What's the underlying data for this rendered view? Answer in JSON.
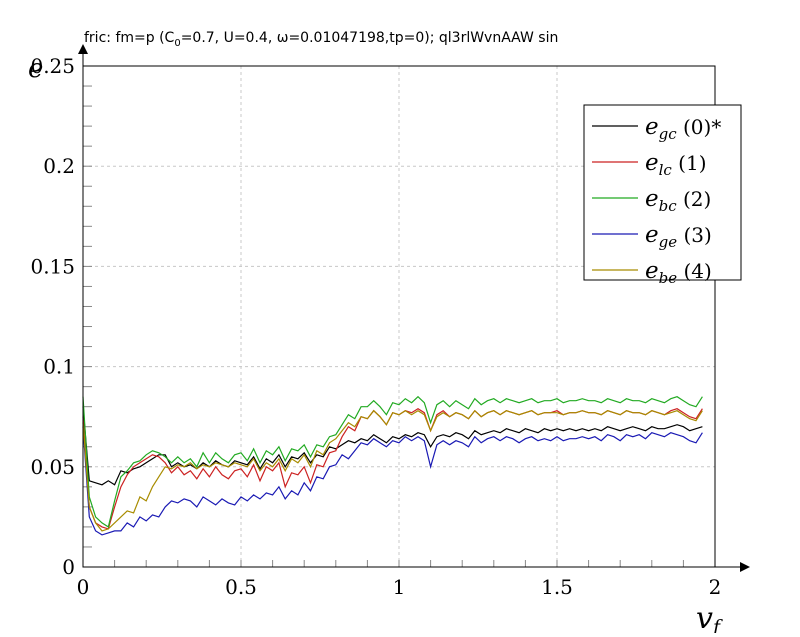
{
  "chart_data": {
    "type": "line",
    "title": "fric: fm=p (C",
    "title_sub": "0",
    "title_rest": "=0.7, U=0.4, ω=0.01047198,tp=0); ql3rlWvnAAW sin",
    "xlabel": "v",
    "xlabel_sub": "f",
    "ylabel": "e",
    "xlim": [
      0,
      2
    ],
    "ylim": [
      0,
      0.25
    ],
    "x_ticks": [
      0,
      0.5,
      1,
      1.5,
      2
    ],
    "x_tick_labels": [
      "0",
      "0.5",
      "1",
      "1.5",
      "2"
    ],
    "y_ticks": [
      0,
      0.05,
      0.1,
      0.15,
      0.2,
      0.25
    ],
    "y_tick_labels": [
      "0",
      "0.05",
      "0.1",
      "0.15",
      "0.2",
      "0.25"
    ],
    "grid": true,
    "legend_position": "top-right",
    "x": [
      0,
      0.02,
      0.04,
      0.06,
      0.08,
      0.1,
      0.12,
      0.14,
      0.16,
      0.18,
      0.2,
      0.22,
      0.24,
      0.26,
      0.28,
      0.3,
      0.32,
      0.34,
      0.36,
      0.38,
      0.4,
      0.42,
      0.44,
      0.46,
      0.48,
      0.5,
      0.52,
      0.54,
      0.56,
      0.58,
      0.6,
      0.62,
      0.64,
      0.66,
      0.68,
      0.7,
      0.72,
      0.74,
      0.76,
      0.78,
      0.8,
      0.82,
      0.84,
      0.86,
      0.88,
      0.9,
      0.92,
      0.94,
      0.96,
      0.98,
      1.0,
      1.02,
      1.04,
      1.06,
      1.08,
      1.1,
      1.12,
      1.14,
      1.16,
      1.18,
      1.2,
      1.22,
      1.24,
      1.26,
      1.28,
      1.3,
      1.32,
      1.34,
      1.36,
      1.38,
      1.4,
      1.42,
      1.44,
      1.46,
      1.48,
      1.5,
      1.52,
      1.54,
      1.56,
      1.58,
      1.6,
      1.62,
      1.64,
      1.66,
      1.68,
      1.7,
      1.72,
      1.74,
      1.76,
      1.78,
      1.8,
      1.82,
      1.84,
      1.86,
      1.88,
      1.9,
      1.92,
      1.94,
      1.96
    ],
    "series": [
      {
        "name": "e",
        "name_sub": "gc",
        "suffix": "(0)*",
        "color": "#000000",
        "values": [
          0.08,
          0.043,
          0.042,
          0.041,
          0.043,
          0.041,
          0.048,
          0.047,
          0.049,
          0.05,
          0.052,
          0.054,
          0.056,
          0.056,
          0.05,
          0.052,
          0.05,
          0.051,
          0.049,
          0.052,
          0.05,
          0.053,
          0.051,
          0.05,
          0.053,
          0.052,
          0.051,
          0.055,
          0.049,
          0.054,
          0.052,
          0.056,
          0.05,
          0.055,
          0.054,
          0.057,
          0.052,
          0.056,
          0.055,
          0.06,
          0.059,
          0.061,
          0.063,
          0.062,
          0.064,
          0.063,
          0.066,
          0.064,
          0.062,
          0.065,
          0.064,
          0.066,
          0.065,
          0.067,
          0.066,
          0.06,
          0.065,
          0.066,
          0.065,
          0.067,
          0.066,
          0.064,
          0.068,
          0.066,
          0.067,
          0.068,
          0.067,
          0.069,
          0.068,
          0.067,
          0.069,
          0.068,
          0.067,
          0.069,
          0.068,
          0.069,
          0.068,
          0.069,
          0.068,
          0.069,
          0.068,
          0.069,
          0.068,
          0.07,
          0.069,
          0.068,
          0.069,
          0.07,
          0.069,
          0.068,
          0.07,
          0.069,
          0.069,
          0.07,
          0.071,
          0.07,
          0.068,
          0.069,
          0.07
        ]
      },
      {
        "name": "e",
        "name_sub": "lc",
        "suffix": "(1)",
        "color": "#cc2222",
        "values": [
          0.075,
          0.03,
          0.022,
          0.02,
          0.019,
          0.03,
          0.04,
          0.046,
          0.05,
          0.052,
          0.054,
          0.056,
          0.055,
          0.052,
          0.047,
          0.05,
          0.046,
          0.048,
          0.044,
          0.049,
          0.045,
          0.05,
          0.046,
          0.044,
          0.048,
          0.049,
          0.045,
          0.051,
          0.043,
          0.05,
          0.048,
          0.052,
          0.04,
          0.047,
          0.046,
          0.05,
          0.042,
          0.051,
          0.05,
          0.057,
          0.058,
          0.065,
          0.07,
          0.068,
          0.075,
          0.074,
          0.078,
          0.075,
          0.071,
          0.077,
          0.076,
          0.078,
          0.077,
          0.079,
          0.077,
          0.068,
          0.076,
          0.078,
          0.075,
          0.077,
          0.076,
          0.074,
          0.078,
          0.075,
          0.077,
          0.078,
          0.076,
          0.078,
          0.077,
          0.076,
          0.077,
          0.078,
          0.076,
          0.077,
          0.077,
          0.078,
          0.076,
          0.077,
          0.077,
          0.078,
          0.077,
          0.077,
          0.076,
          0.078,
          0.077,
          0.076,
          0.078,
          0.077,
          0.077,
          0.076,
          0.078,
          0.077,
          0.076,
          0.078,
          0.079,
          0.077,
          0.075,
          0.074,
          0.079
        ]
      },
      {
        "name": "e",
        "name_sub": "bc",
        "suffix": "(2)",
        "color": "#22aa22",
        "values": [
          0.085,
          0.035,
          0.025,
          0.022,
          0.02,
          0.033,
          0.045,
          0.048,
          0.052,
          0.053,
          0.056,
          0.058,
          0.057,
          0.055,
          0.052,
          0.055,
          0.052,
          0.054,
          0.05,
          0.057,
          0.052,
          0.057,
          0.054,
          0.052,
          0.056,
          0.057,
          0.053,
          0.059,
          0.052,
          0.058,
          0.056,
          0.06,
          0.053,
          0.059,
          0.058,
          0.061,
          0.055,
          0.061,
          0.06,
          0.065,
          0.066,
          0.071,
          0.076,
          0.074,
          0.08,
          0.08,
          0.083,
          0.08,
          0.076,
          0.082,
          0.081,
          0.084,
          0.082,
          0.085,
          0.082,
          0.072,
          0.081,
          0.083,
          0.08,
          0.083,
          0.081,
          0.079,
          0.084,
          0.081,
          0.083,
          0.084,
          0.082,
          0.084,
          0.083,
          0.082,
          0.083,
          0.084,
          0.082,
          0.083,
          0.083,
          0.084,
          0.082,
          0.083,
          0.083,
          0.084,
          0.083,
          0.083,
          0.082,
          0.084,
          0.083,
          0.082,
          0.084,
          0.083,
          0.083,
          0.082,
          0.084,
          0.083,
          0.082,
          0.084,
          0.085,
          0.083,
          0.081,
          0.08,
          0.085
        ]
      },
      {
        "name": "e",
        "name_sub": "ge",
        "suffix": "(3)",
        "color": "#1a1ab4",
        "values": [
          0.07,
          0.025,
          0.018,
          0.016,
          0.017,
          0.018,
          0.018,
          0.022,
          0.02,
          0.025,
          0.023,
          0.026,
          0.025,
          0.03,
          0.033,
          0.032,
          0.034,
          0.033,
          0.03,
          0.035,
          0.033,
          0.031,
          0.034,
          0.032,
          0.031,
          0.035,
          0.033,
          0.036,
          0.034,
          0.037,
          0.036,
          0.04,
          0.034,
          0.038,
          0.036,
          0.042,
          0.038,
          0.045,
          0.044,
          0.05,
          0.051,
          0.056,
          0.054,
          0.058,
          0.062,
          0.061,
          0.064,
          0.062,
          0.06,
          0.063,
          0.062,
          0.065,
          0.063,
          0.065,
          0.063,
          0.05,
          0.061,
          0.063,
          0.061,
          0.063,
          0.062,
          0.06,
          0.065,
          0.062,
          0.064,
          0.065,
          0.063,
          0.065,
          0.064,
          0.062,
          0.064,
          0.065,
          0.063,
          0.064,
          0.063,
          0.065,
          0.063,
          0.064,
          0.064,
          0.065,
          0.064,
          0.065,
          0.063,
          0.066,
          0.065,
          0.063,
          0.066,
          0.065,
          0.066,
          0.064,
          0.067,
          0.066,
          0.065,
          0.067,
          0.066,
          0.065,
          0.063,
          0.062,
          0.067
        ]
      },
      {
        "name": "e",
        "name_sub": "be",
        "suffix": "(4)",
        "color": "#a88c00",
        "values": [
          0.072,
          0.03,
          0.022,
          0.018,
          0.019,
          0.022,
          0.025,
          0.028,
          0.027,
          0.035,
          0.033,
          0.04,
          0.045,
          0.05,
          0.049,
          0.051,
          0.05,
          0.052,
          0.049,
          0.051,
          0.05,
          0.052,
          0.051,
          0.05,
          0.052,
          0.051,
          0.05,
          0.054,
          0.048,
          0.052,
          0.05,
          0.054,
          0.048,
          0.054,
          0.052,
          0.056,
          0.05,
          0.058,
          0.056,
          0.062,
          0.064,
          0.068,
          0.072,
          0.07,
          0.075,
          0.074,
          0.078,
          0.075,
          0.071,
          0.077,
          0.076,
          0.078,
          0.076,
          0.078,
          0.076,
          0.068,
          0.075,
          0.077,
          0.075,
          0.077,
          0.076,
          0.074,
          0.078,
          0.075,
          0.077,
          0.078,
          0.076,
          0.078,
          0.077,
          0.076,
          0.077,
          0.078,
          0.076,
          0.077,
          0.077,
          0.077,
          0.076,
          0.077,
          0.077,
          0.078,
          0.077,
          0.077,
          0.076,
          0.078,
          0.077,
          0.076,
          0.078,
          0.077,
          0.077,
          0.076,
          0.078,
          0.077,
          0.076,
          0.077,
          0.078,
          0.076,
          0.074,
          0.073,
          0.078
        ]
      }
    ]
  }
}
